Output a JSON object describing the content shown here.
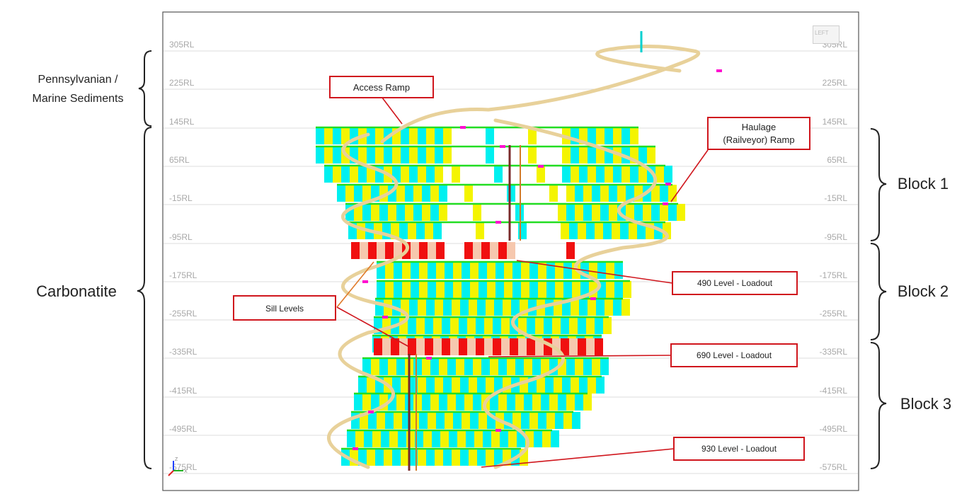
{
  "viewport": {
    "rl_labels": [
      "305RL",
      "225RL",
      "145RL",
      "65RL",
      "-15RL",
      "-95RL",
      "-175RL",
      "-255RL",
      "-335RL",
      "-415RL",
      "-495RL",
      "-575RL"
    ],
    "view_cube_label": "LEFT",
    "axis_z_label": "Z",
    "axis_x_label": "X"
  },
  "geology": {
    "upper_unit": [
      "Pennsylvanian /",
      "Marine Sediments"
    ],
    "lower_unit": "Carbonatite"
  },
  "blocks": [
    "Block 1",
    "Block 2",
    "Block 3"
  ],
  "callouts": {
    "access_ramp": "Access Ramp",
    "haulage_ramp": [
      "Haulage",
      "(Railveyor) Ramp"
    ],
    "sill_levels": "Sill Levels",
    "loadout_490": "490 Level - Loadout",
    "loadout_690": "690 Level - Loadout",
    "loadout_930": "930 Level - Loadout"
  },
  "colors": {
    "stope_cyan": "#00f0f0",
    "stope_yellow": "#f4f400",
    "sill_red": "#f01010",
    "sill_peach": "#f6c8ae",
    "drive_green": "#22dd22",
    "ramp_tan": "#e8d19a",
    "callout_red": "#d0161d",
    "marker_magenta": "#ff10d0"
  }
}
